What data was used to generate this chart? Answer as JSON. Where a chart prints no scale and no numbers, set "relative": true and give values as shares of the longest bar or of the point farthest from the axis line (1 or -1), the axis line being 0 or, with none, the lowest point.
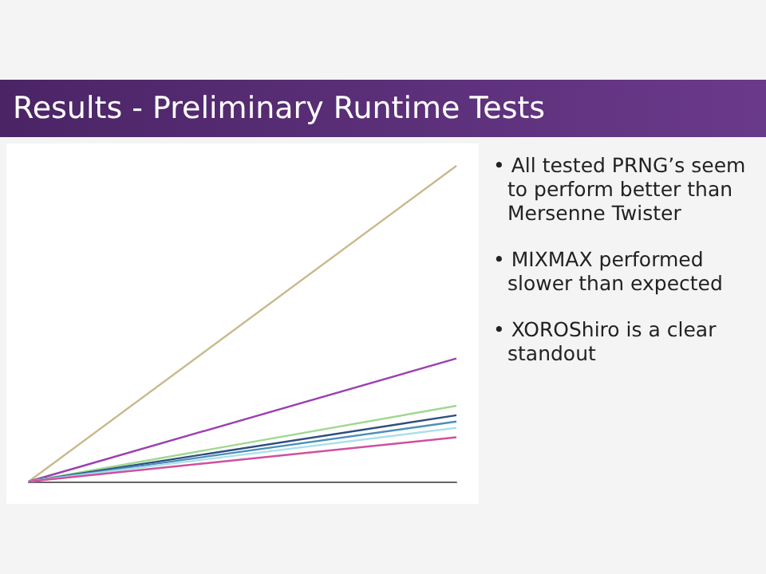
{
  "chart_data": {
    "type": "line",
    "title": "Results - Preliminary Runtime Tests",
    "annotations": [
      "• All tested PRNG’s seem to perform better than Mersenne Twister",
      "• MIXMAX performed slower than expected",
      "• XOROShiro is a clear standout"
    ],
    "relative": true,
    "categories": [
      null,
      null
    ],
    "series": [
      {
        "color": "#c9b98c",
        "values": [
          0,
          1
        ]
      },
      {
        "color": "#9b3fb0",
        "values": [
          0,
          0.39
        ]
      },
      {
        "color": "#9fd88f",
        "values": [
          0,
          0.24
        ]
      },
      {
        "color": "#2e4e7e",
        "values": [
          0,
          0.21
        ]
      },
      {
        "color": "#4a8fb8",
        "values": [
          0,
          0.19
        ]
      },
      {
        "color": "#a8e0ec",
        "values": [
          0,
          0.17
        ]
      },
      {
        "color": "#d04fa0",
        "values": [
          0,
          0.14
        ]
      }
    ],
    "marker": "none"
  }
}
